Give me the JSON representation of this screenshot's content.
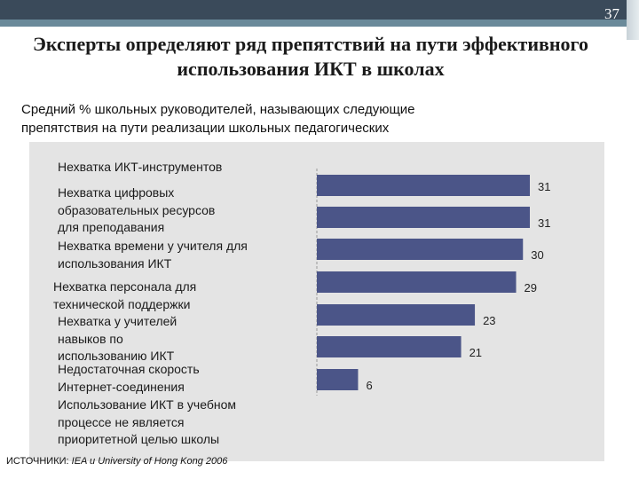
{
  "slide": {
    "number": "37",
    "title_line1": "Эксперты определяют ряд препятствий на пути эффективного",
    "title_line2": "использования ИКТ в школах",
    "subtitle_line1": "Средний % школьных руководителей, называющих следующие",
    "subtitle_line2": "препятствия на пути реализации школьных педагогических",
    "source_prefix": "ИСТОЧНИКИ: ",
    "source_italic": "IEA u University of Hong Kong 2006",
    "colors": {
      "bar": "#4b5588",
      "panel": "#e4e4e4",
      "topbar": "#3a4a5a"
    }
  },
  "labels": [
    [
      "Нехватка ИКТ-инструментов"
    ],
    [
      "Нехватка цифровых",
      "образовательных ресурсов",
      "для преподавания"
    ],
    [
      "Нехватка времени у учителя для",
      "использования ИКТ"
    ],
    [
      "Нехватка персонала для",
      "технической поддержки"
    ],
    [
      "Нехватка у учителей",
      "навыков по",
      "использованию ИКТ"
    ],
    [
      "Недостаточная скорость",
      "Интернет-соединения"
    ],
    [
      "Использование ИКТ в учебном",
      "процессе не является",
      "приоритетной целью школы"
    ]
  ],
  "chart_data": {
    "type": "bar",
    "orientation": "horizontal",
    "title": "Средний % школьных руководителей, называющих следующие препятствия на пути реализации школьных педагогических",
    "categories": [
      "Нехватка ИКТ-инструментов",
      "Нехватка цифровых образовательных ресурсов для преподавания",
      "Нехватка времени у учителя для использования ИКТ",
      "Нехватка персонала для технической поддержки",
      "Нехватка у учителей навыков по использованию ИКТ",
      "Недостаточная скорость Интернет-соединения",
      "Использование ИКТ в учебном процессе не является приоритетной целью школы"
    ],
    "values": [
      31,
      31,
      30,
      29,
      23,
      21,
      6
    ],
    "value_labels": [
      "31",
      "31",
      "30",
      "29",
      "23",
      "21",
      "6"
    ],
    "xlim": [
      0,
      31
    ],
    "grid": false,
    "xlabel": "",
    "ylabel": ""
  }
}
